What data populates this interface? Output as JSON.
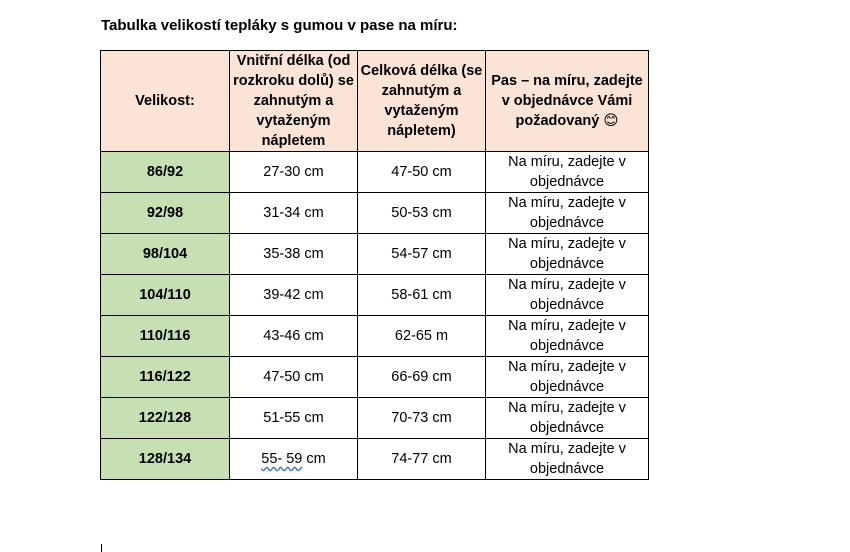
{
  "title": "Tabulka velikostí tepláky s gumou v pase na míru:",
  "table": {
    "headers": {
      "size": "Velikost:",
      "inner_length": "Vnitřní délka (od rozkroku dolů) se zahnutým a vytaženým nápletem",
      "total_length": "Celková délka (se zahnutým a vytaženým nápletem)",
      "waist": "Pas – na míru, zadejte v objednávce Vámi požadovaný 😊"
    },
    "rows": [
      {
        "size": "86/92",
        "inner": "27-30 cm",
        "total": "47-50 cm",
        "waist": "Na míru, zadejte v objednávce"
      },
      {
        "size": "92/98",
        "inner": "31-34 cm",
        "total": "50-53 cm",
        "waist": "Na míru, zadejte v objednávce"
      },
      {
        "size": "98/104",
        "inner": "35-38 cm",
        "total": "54-57 cm",
        "waist": "Na míru, zadejte v objednávce"
      },
      {
        "size": "104/110",
        "inner": "39-42 cm",
        "total": "58-61 cm",
        "waist": "Na míru, zadejte v objednávce"
      },
      {
        "size": "110/116",
        "inner": "43-46 cm",
        "total": "62-65 m",
        "waist": "Na míru, zadejte v objednávce"
      },
      {
        "size": "116/122",
        "inner": "47-50 cm",
        "total": "66-69 cm",
        "waist": "Na míru, zadejte v objednávce"
      },
      {
        "size": "122/128",
        "inner": "51-55 cm",
        "total": "70-73 cm",
        "waist": "Na míru, zadejte v objednávce"
      },
      {
        "size": "128/134",
        "inner_flagged": "55- 59",
        "inner_unit": " cm",
        "total": "74-77 cm",
        "waist": "Na míru, zadejte v objednávce"
      }
    ]
  }
}
